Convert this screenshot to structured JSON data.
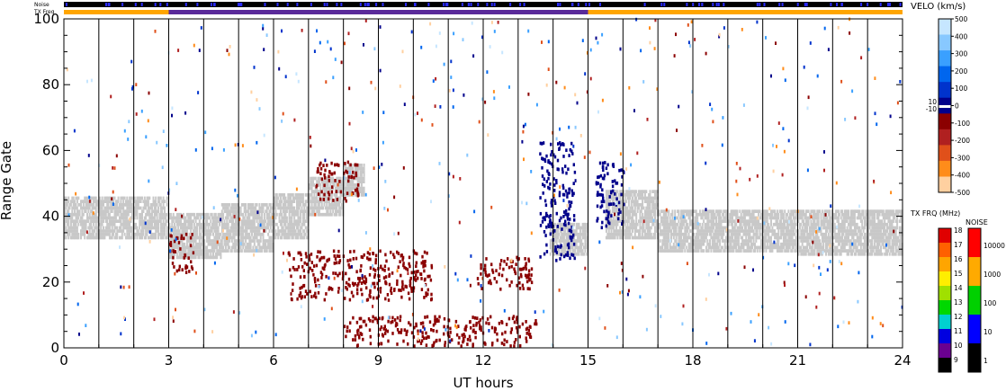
{
  "chart_data": {
    "type": "scatter",
    "xlabel": "UT hours",
    "ylabel": "Range Gate",
    "x_ticks": [
      "0",
      "3",
      "6",
      "9",
      "12",
      "15",
      "18",
      "21",
      "24"
    ],
    "y_ticks": [
      "0",
      "20",
      "40",
      "60",
      "80",
      "100"
    ],
    "xlim": [
      0,
      24
    ],
    "ylim": [
      0,
      100
    ],
    "scan_boundaries_hours": [
      1.0,
      2.0,
      3.0,
      4.0,
      5.0,
      6.0,
      7.0,
      8.0,
      9.0,
      10.0,
      11.0,
      12.0,
      13.0,
      14.0,
      15.0,
      16.0,
      17.0,
      18.0,
      19.0,
      20.0,
      21.0,
      22.0,
      23.0
    ],
    "top_strips": {
      "noise_label": "Noise",
      "txfreq_label": "TX Freq",
      "txfreq_segments": [
        {
          "from": 0,
          "to": 3,
          "color": "#ffa500"
        },
        {
          "from": 3,
          "to": 15,
          "color": "#5a2a9a"
        },
        {
          "from": 15,
          "to": 24,
          "color": "#ffa500"
        }
      ]
    },
    "ground_scatter": [
      {
        "x0": 0.0,
        "x1": 3.0,
        "ymin": 33,
        "ymax": 46
      },
      {
        "x0": 3.0,
        "x1": 4.5,
        "ymin": 27,
        "ymax": 41
      },
      {
        "x0": 4.5,
        "x1": 6.0,
        "ymin": 29,
        "ymax": 44
      },
      {
        "x0": 6.0,
        "x1": 7.0,
        "ymin": 33,
        "ymax": 47
      },
      {
        "x0": 7.0,
        "x1": 8.0,
        "ymin": 40,
        "ymax": 52
      },
      {
        "x0": 8.0,
        "x1": 8.6,
        "ymin": 46,
        "ymax": 56
      },
      {
        "x0": 13.9,
        "x1": 15.0,
        "ymin": 28,
        "ymax": 38
      },
      {
        "x0": 15.5,
        "x1": 17.0,
        "ymin": 33,
        "ymax": 48
      },
      {
        "x0": 17.0,
        "x1": 21.0,
        "ymin": 29,
        "ymax": 42
      },
      {
        "x0": 21.0,
        "x1": 24.0,
        "ymin": 28,
        "ymax": 42
      }
    ],
    "ionospheric_scatter": [
      {
        "x0": 3.0,
        "x1": 3.7,
        "ymin": 22,
        "ymax": 34,
        "color": "#8b0000"
      },
      {
        "x0": 7.2,
        "x1": 8.4,
        "ymin": 44,
        "ymax": 56,
        "color": "#8b0000"
      },
      {
        "x0": 6.4,
        "x1": 10.5,
        "ymin": 14,
        "ymax": 29,
        "color": "#8b0000"
      },
      {
        "x0": 11.8,
        "x1": 13.4,
        "ymin": 17,
        "ymax": 27,
        "color": "#8b0000"
      },
      {
        "x0": 8.0,
        "x1": 13.5,
        "ymin": 0,
        "ymax": 9,
        "color": "#8b0000"
      },
      {
        "x0": 13.6,
        "x1": 14.6,
        "ymin": 26,
        "ymax": 62,
        "color": "#00008b"
      },
      {
        "x0": 15.2,
        "x1": 16.0,
        "ymin": 36,
        "ymax": 56,
        "color": "#00008b"
      }
    ],
    "velocity_colorbar": {
      "title": "VELO (km/s)",
      "tick_labels": [
        "500",
        "400",
        "300",
        "200",
        "100",
        "0",
        "-100",
        "-200",
        "-300",
        "-400",
        "-500"
      ],
      "inner_labels": [
        "10",
        "-10"
      ],
      "colors": [
        "#c6e6ff",
        "#88c8ff",
        "#3aa0ff",
        "#0066ee",
        "#0033cc",
        "#00008b",
        "#8b0000",
        "#b02020",
        "#e0501a",
        "#ff8c1a",
        "#ffd0a0"
      ]
    },
    "txfreq_colorbar": {
      "title": "TX FRQ (MHz)",
      "tick_labels": [
        "18",
        "17",
        "16",
        "15",
        "14",
        "13",
        "12",
        "11",
        "10",
        "9"
      ],
      "colors": [
        "#e00000",
        "#ff6000",
        "#ffa500",
        "#ffee00",
        "#a0e000",
        "#00d800",
        "#00d0d0",
        "#0000e0",
        "#6a0090",
        "#000000"
      ]
    },
    "noise_colorbar": {
      "title": "NOISE",
      "tick_labels": [
        "10000",
        "1000",
        "100",
        "10",
        "1"
      ],
      "colors": [
        "#ff0000",
        "#ffaa00",
        "#00d000",
        "#0000ff",
        "#000000"
      ]
    }
  }
}
